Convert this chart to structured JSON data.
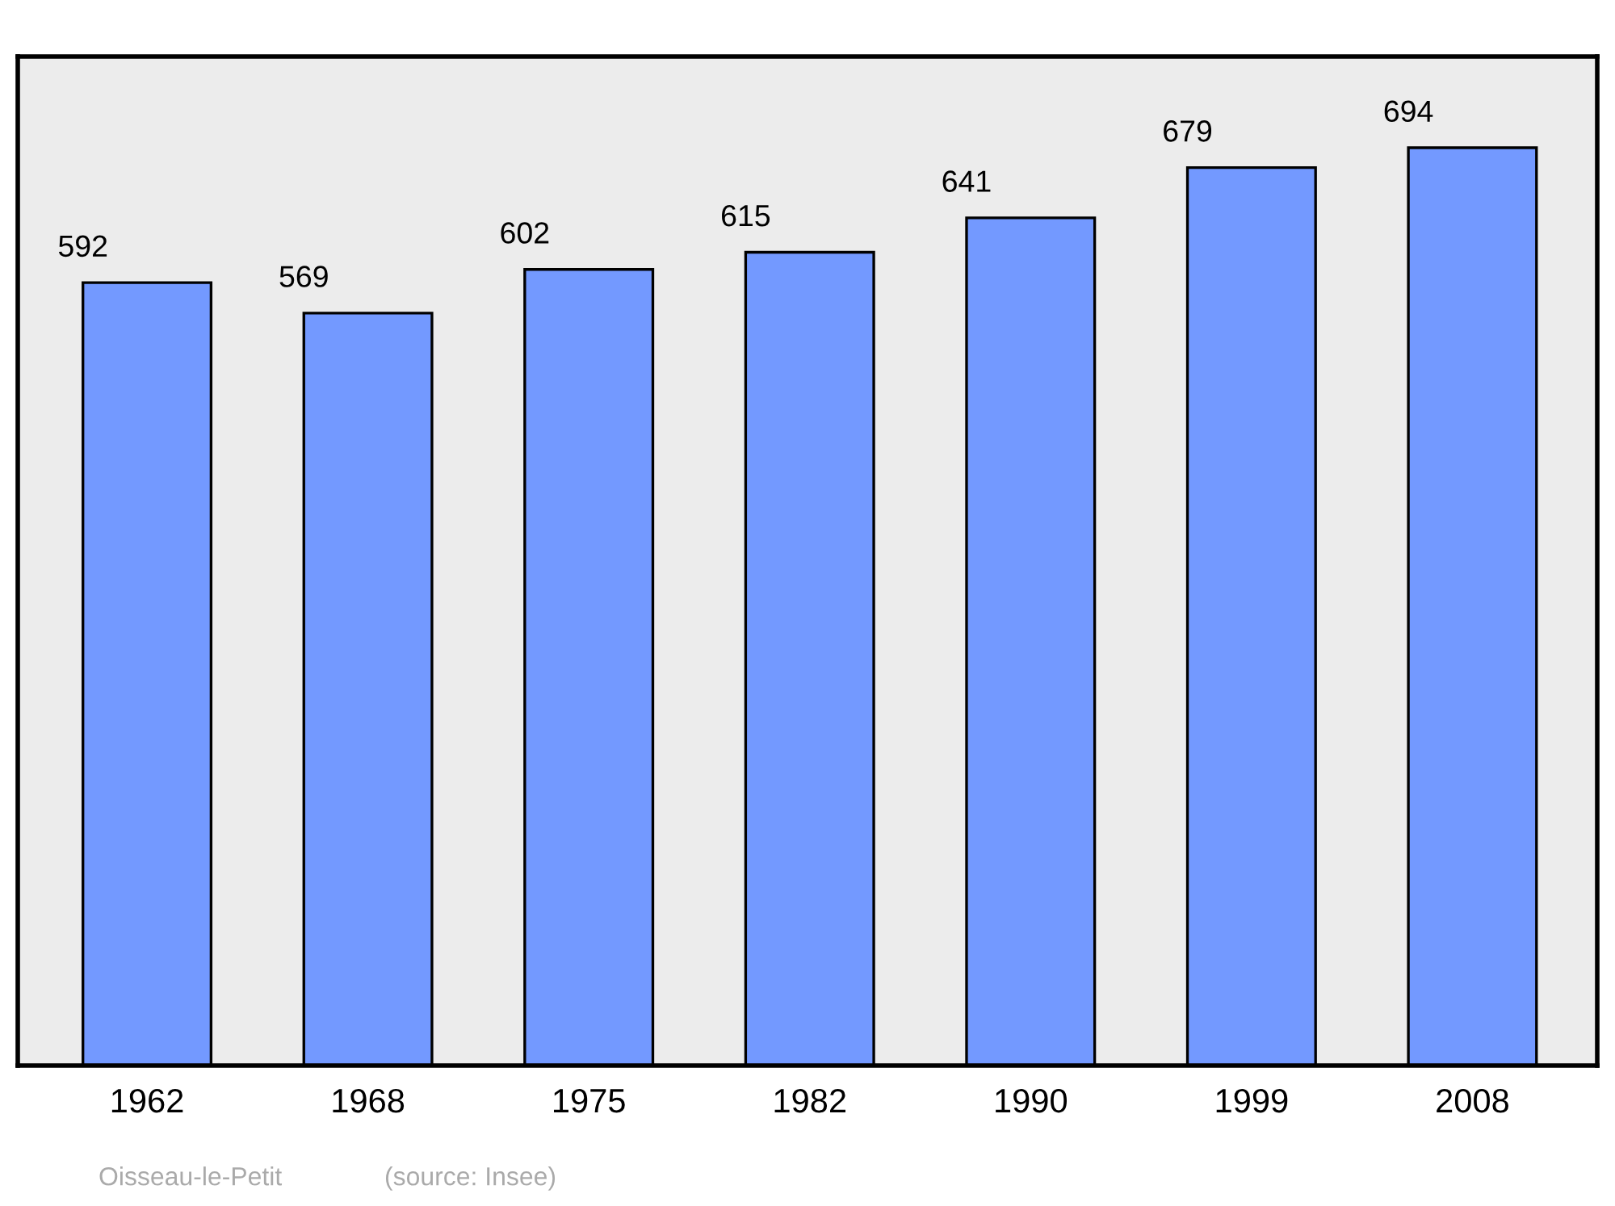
{
  "chart_data": {
    "type": "bar",
    "categories": [
      "1962",
      "1968",
      "1975",
      "1982",
      "1990",
      "1999",
      "2008"
    ],
    "values": [
      592,
      569,
      602,
      615,
      641,
      679,
      694
    ],
    "color": "#7399ff",
    "ylim": [
      0,
      763
    ],
    "data_labels": true,
    "tick_labels": "x",
    "grid": false,
    "legend": false,
    "annotations": [
      "Oisseau-le-Petit",
      "(source: Insee)"
    ]
  }
}
